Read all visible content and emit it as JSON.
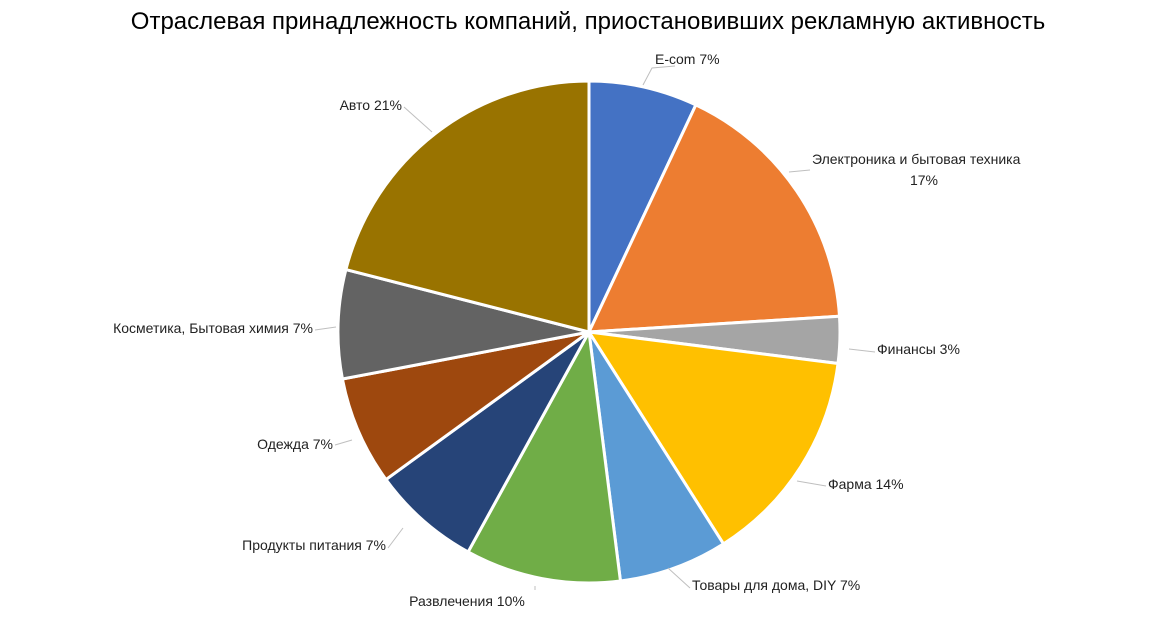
{
  "chart_data": {
    "type": "pie",
    "title": "Отраслевая принадлежность компаний, приостановивших рекламную активность",
    "slices": [
      {
        "name": "E-com",
        "value": 7,
        "label": "E-com 7%",
        "color": "#4472C4"
      },
      {
        "name": "Электроника и бытовая техника",
        "value": 17,
        "label_lines": [
          "Электроника и бытовая техника",
          "17%"
        ],
        "color": "#ED7D31"
      },
      {
        "name": "Финансы",
        "value": 3,
        "label": "Финансы 3%",
        "color": "#A5A5A5"
      },
      {
        "name": "Фарма",
        "value": 14,
        "label": "Фарма 14%",
        "color": "#FFC000"
      },
      {
        "name": "Товары для дома, DIY",
        "value": 7,
        "label": "Товары для дома, DIY 7%",
        "color": "#5B9BD5"
      },
      {
        "name": "Развлечения",
        "value": 10,
        "label": "Развлечения 10%",
        "color": "#70AD47"
      },
      {
        "name": "Продукты питания",
        "value": 7,
        "label": "Продукты питания 7%",
        "color": "#264478"
      },
      {
        "name": "Одежда",
        "value": 7,
        "label": "Одежда 7%",
        "color": "#9E480E"
      },
      {
        "name": "Косметика, Бытовая химия",
        "value": 7,
        "label": "Косметика, Бытовая химия 7%",
        "color": "#636363"
      },
      {
        "name": "Авто",
        "value": 21,
        "label": "Авто 21%",
        "color": "#997300"
      }
    ]
  }
}
